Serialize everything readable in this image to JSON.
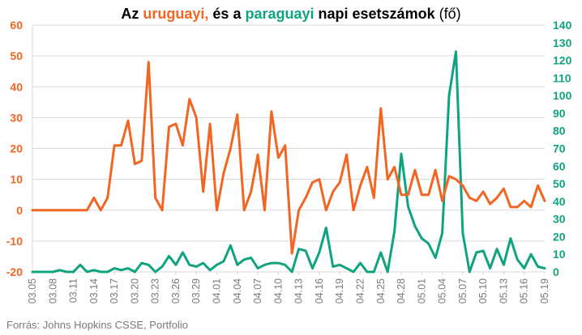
{
  "title": {
    "part1": "Az ",
    "uy": "uruguayi,",
    "part2": " és a ",
    "py": "paraguayi",
    "part3": " napi esetszámok ",
    "unit": "(fő)"
  },
  "source": "Forrás: Johns Hopkins CSSE, Portfolio",
  "colors": {
    "uruguay": "#f26522",
    "paraguay": "#10a37f",
    "axis_text": "#7a7a7a",
    "grid": "#d9d9d9"
  },
  "chart_data": {
    "type": "line",
    "x_tick_labels": [
      "03.05",
      "03.08",
      "03.11",
      "03.14",
      "03.17",
      "03.20",
      "03.23",
      "03.26",
      "03.29",
      "04.01",
      "04.04",
      "04.07",
      "04.10",
      "04.13",
      "04.16",
      "04.19",
      "04.22",
      "04.25",
      "04.28",
      "05.01",
      "05.04",
      "05.07",
      "05.10",
      "05.13",
      "05.16",
      "05.19"
    ],
    "y_left": {
      "min": -20,
      "max": 60,
      "ticks": [
        "-20",
        "-10",
        "0",
        "10",
        "20",
        "30",
        "40",
        "50",
        "60"
      ]
    },
    "y_right": {
      "min": 0,
      "max": 140,
      "ticks": [
        "0",
        "10",
        "20",
        "30",
        "40",
        "50",
        "60",
        "70",
        "80",
        "90",
        "100",
        "110",
        "120",
        "130",
        "140"
      ]
    },
    "series": [
      {
        "axis": "left",
        "values": [
          0,
          0,
          0,
          0,
          0,
          0,
          0,
          0,
          0,
          4,
          0,
          4,
          21,
          21,
          29,
          15,
          16,
          48,
          4,
          0,
          27,
          28,
          21,
          36,
          30,
          6,
          28,
          0,
          12,
          20,
          31,
          0,
          6,
          18,
          0,
          32,
          17,
          21,
          -14,
          0,
          4,
          9,
          10,
          0,
          6,
          9,
          18,
          0,
          8,
          14,
          4,
          33,
          10,
          14,
          5,
          5,
          13,
          5,
          5,
          13,
          3,
          11,
          10,
          8,
          4,
          3,
          6,
          2,
          4,
          7,
          1,
          1,
          3,
          1,
          8,
          3
        ]
      },
      {
        "axis": "right",
        "values": [
          0,
          0,
          0,
          0,
          1,
          0,
          0,
          4,
          0,
          1,
          0,
          0,
          2,
          1,
          2,
          0,
          5,
          4,
          0,
          3,
          9,
          4,
          11,
          4,
          3,
          5,
          1,
          4,
          6,
          15,
          4,
          7,
          8,
          2,
          4,
          5,
          5,
          4,
          0,
          13,
          12,
          2,
          11,
          25,
          3,
          4,
          2,
          0,
          5,
          0,
          0,
          11,
          0,
          23,
          67,
          37,
          26,
          19,
          16,
          8,
          22,
          100,
          125,
          22,
          0,
          11,
          12,
          2,
          13,
          4,
          19,
          7,
          2,
          10,
          3,
          2
        ]
      }
    ]
  }
}
